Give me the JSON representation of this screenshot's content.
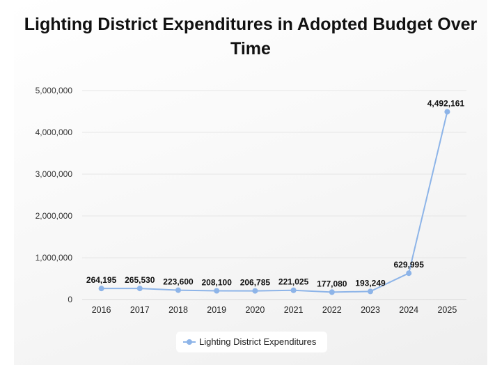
{
  "chart_data": {
    "type": "line",
    "title": "Lighting District Expenditures in Adopted Budget Over Time",
    "categories": [
      "2016",
      "2017",
      "2018",
      "2019",
      "2020",
      "2021",
      "2022",
      "2023",
      "2024",
      "2025"
    ],
    "series": [
      {
        "name": "Lighting District Expenditures",
        "values": [
          264195,
          265530,
          223600,
          208100,
          206785,
          221025,
          177080,
          193249,
          629995,
          4492161
        ],
        "labels": [
          "264,195",
          "265,530",
          "223,600",
          "208,100",
          "206,785",
          "221,025",
          "177,080",
          "193,249",
          "629,995",
          "4,492,161"
        ],
        "color": "#8db4e8"
      }
    ],
    "ylim": [
      0,
      5000000
    ],
    "yticks": [
      0,
      1000000,
      2000000,
      3000000,
      4000000,
      5000000
    ],
    "ytick_labels": [
      "0",
      "1,000,000",
      "2,000,000",
      "3,000,000",
      "4,000,000",
      "5,000,000"
    ],
    "xlabel": "",
    "ylabel": "",
    "grid": true,
    "legend_position": "bottom"
  }
}
